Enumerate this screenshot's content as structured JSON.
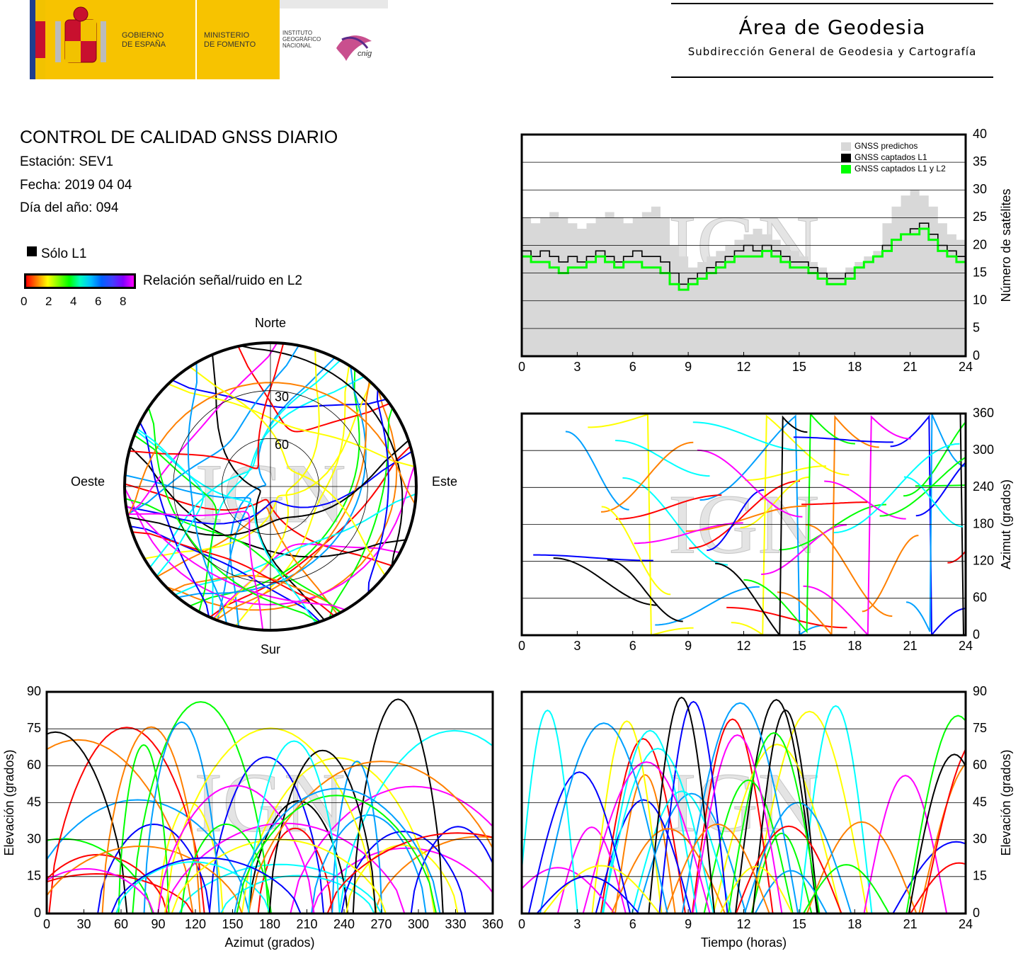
{
  "header": {
    "logos": {
      "gobierno": "GOBIERNO\nDE ESPAÑA",
      "ministerio": "MINISTERIO\nDE FOMENTO",
      "instituto": "INSTITUTO\nGEOGRÁFICO\nNACIONAL",
      "cnig": "cnig"
    },
    "area_title": "Área de Geodesia",
    "area_subtitle": "Subdirección General de Geodesia y Cartografía"
  },
  "report": {
    "title": "CONTROL DE CALIDAD GNSS DIARIO",
    "station": "Estación: SEV1",
    "date": "Fecha: 2019 04 04",
    "doy": "Día del año: 094"
  },
  "legend": {
    "l1_only": "Sólo L1",
    "snr_label": "Relación señal/ruido en L2",
    "snr_ticks": [
      "0",
      "2",
      "4",
      "6",
      "8"
    ]
  },
  "watermark": "IGN",
  "colors": {
    "predicted": "#d8d8d8",
    "l1": "#000000",
    "l1l2": "#00ff00",
    "palette": [
      "#ff0000",
      "#ff8000",
      "#ffff00",
      "#00ff00",
      "#00ffff",
      "#00a0ff",
      "#0000ff",
      "#ff00ff",
      "#000000"
    ]
  },
  "chart_data": [
    {
      "type": "area",
      "id": "satellite-count",
      "ylabel": "Número de satélites",
      "xlim": [
        0,
        24
      ],
      "ylim": [
        0,
        40
      ],
      "xticks": [
        0,
        3,
        6,
        9,
        12,
        15,
        18,
        21,
        24
      ],
      "yticks": [
        0,
        5,
        10,
        15,
        20,
        25,
        30,
        35,
        40
      ],
      "grid": "horizontal",
      "legend": [
        "GNSS predichos",
        "GNSS captados L1",
        "GNSS captados L1 y L2"
      ],
      "legend_position": "top-right",
      "series": [
        {
          "name": "GNSS predichos",
          "x": [
            0,
            0.5,
            1,
            1.5,
            2,
            2.5,
            3,
            3.5,
            4,
            4.5,
            5,
            5.5,
            6,
            6.5,
            7,
            7.5,
            8,
            8.5,
            9,
            9.5,
            10,
            10.5,
            11,
            11.5,
            12,
            12.5,
            13,
            13.5,
            14,
            14.5,
            15,
            15.5,
            16,
            16.5,
            17,
            17.5,
            18,
            18.5,
            19,
            19.5,
            20,
            20.5,
            21,
            21.5,
            22,
            22.5,
            23,
            23.5,
            24
          ],
          "y": [
            25,
            24,
            25,
            26,
            25,
            24,
            23,
            24,
            25,
            26,
            25,
            24,
            25,
            26,
            27,
            25,
            20,
            18,
            16,
            17,
            18,
            19,
            20,
            21,
            22,
            23,
            22,
            21,
            20,
            19,
            18,
            17,
            16,
            15,
            15,
            16,
            17,
            18,
            19,
            24,
            27,
            29,
            30,
            29,
            27,
            24,
            22,
            21,
            20
          ]
        },
        {
          "name": "GNSS captados L1",
          "x": [
            0,
            0.5,
            1,
            1.5,
            2,
            2.5,
            3,
            3.5,
            4,
            4.5,
            5,
            5.5,
            6,
            6.5,
            7,
            7.5,
            8,
            8.5,
            9,
            9.5,
            10,
            10.5,
            11,
            11.5,
            12,
            12.5,
            13,
            13.5,
            14,
            14.5,
            15,
            15.5,
            16,
            16.5,
            17,
            17.5,
            18,
            18.5,
            19,
            19.5,
            20,
            20.5,
            21,
            21.5,
            22,
            22.5,
            23,
            23.5,
            24
          ],
          "y": [
            19,
            18,
            19,
            18,
            17,
            18,
            17,
            18,
            19,
            18,
            17,
            18,
            19,
            18,
            18,
            17,
            15,
            13,
            14,
            15,
            16,
            17,
            18,
            19,
            20,
            19,
            20,
            19,
            18,
            17,
            17,
            16,
            15,
            14,
            14,
            15,
            16,
            17,
            18,
            20,
            21,
            22,
            23,
            24,
            22,
            20,
            19,
            18,
            19
          ]
        },
        {
          "name": "GNSS captados L1 y L2",
          "x": [
            0,
            0.5,
            1,
            1.5,
            2,
            2.5,
            3,
            3.5,
            4,
            4.5,
            5,
            5.5,
            6,
            6.5,
            7,
            7.5,
            8,
            8.5,
            9,
            9.5,
            10,
            10.5,
            11,
            11.5,
            12,
            12.5,
            13,
            13.5,
            14,
            14.5,
            15,
            15.5,
            16,
            16.5,
            17,
            17.5,
            18,
            18.5,
            19,
            19.5,
            20,
            20.5,
            21,
            21.5,
            22,
            22.5,
            23,
            23.5,
            24
          ],
          "y": [
            18,
            17,
            17,
            16,
            15,
            16,
            16,
            17,
            18,
            17,
            16,
            17,
            17,
            16,
            16,
            15,
            13,
            12,
            13,
            14,
            15,
            16,
            17,
            18,
            18,
            18,
            19,
            18,
            17,
            16,
            16,
            15,
            14,
            13,
            13,
            14,
            16,
            17,
            18,
            19,
            21,
            22,
            22,
            23,
            21,
            19,
            18,
            17,
            18
          ]
        }
      ]
    },
    {
      "type": "scatter",
      "id": "azimuth-time",
      "ylabel": "Azimut (grados)",
      "xlim": [
        0,
        24
      ],
      "ylim": [
        0,
        360
      ],
      "xticks": [
        0,
        3,
        6,
        9,
        12,
        15,
        18,
        21,
        24
      ],
      "yticks": [
        0,
        60,
        120,
        180,
        240,
        300,
        360
      ],
      "grid": "horizontal",
      "n_passes": 44
    },
    {
      "type": "scatter",
      "id": "elevation-azimuth",
      "xlabel": "Azimut (grados)",
      "ylabel": "Elevación (grados)",
      "xlim": [
        0,
        360
      ],
      "ylim": [
        0,
        90
      ],
      "xticks": [
        0,
        30,
        60,
        90,
        120,
        150,
        180,
        210,
        240,
        270,
        300,
        330,
        360
      ],
      "yticks": [
        0,
        15,
        30,
        45,
        60,
        75,
        90
      ],
      "grid": "horizontal",
      "n_passes": 44
    },
    {
      "type": "scatter",
      "id": "elevation-time",
      "xlabel": "Tiempo (horas)",
      "ylabel": "Elevación (grados)",
      "xlim": [
        0,
        24
      ],
      "ylim": [
        0,
        90
      ],
      "xticks": [
        0,
        3,
        6,
        9,
        12,
        15,
        18,
        21,
        24
      ],
      "yticks": [
        0,
        15,
        30,
        45,
        60,
        75,
        90
      ],
      "grid": "horizontal",
      "n_passes": 44
    },
    {
      "type": "scatter",
      "id": "skyplot",
      "projection": "polar",
      "directions": {
        "north": "Norte",
        "south": "Sur",
        "east": "Este",
        "west": "Oeste"
      },
      "elevation_rings": [
        "30",
        "60"
      ],
      "n_passes": 44
    }
  ]
}
